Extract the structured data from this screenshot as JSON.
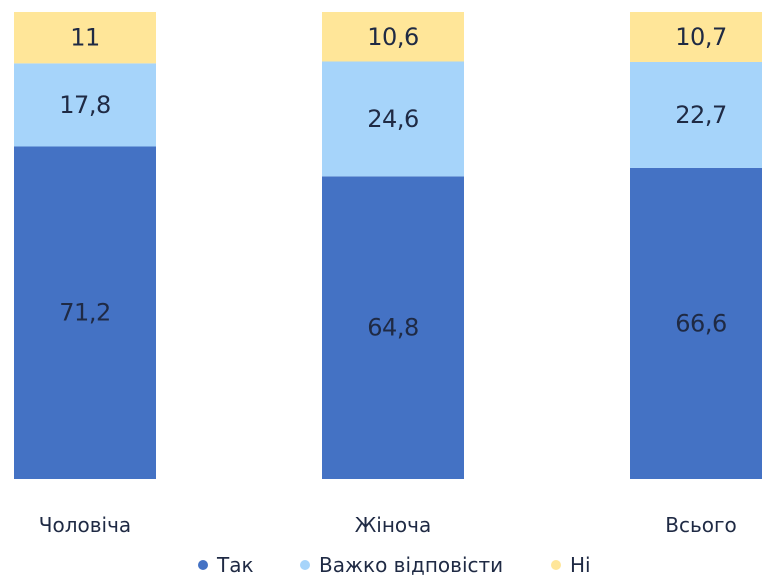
{
  "chart_data": {
    "type": "bar",
    "stacked": true,
    "categories": [
      "Чоловіча",
      "Жіноча",
      "Всього"
    ],
    "series": [
      {
        "name": "Так",
        "values": [
          71.2,
          64.8,
          66.6
        ],
        "labels": [
          "71,2",
          "64,8",
          "66,6"
        ],
        "color": "#4472c4"
      },
      {
        "name": "Важко відповісти",
        "values": [
          17.8,
          24.6,
          22.7
        ],
        "labels": [
          "17,8",
          "24,6",
          "22,7"
        ],
        "color": "#a6d4fa"
      },
      {
        "name": "Ні",
        "values": [
          11,
          10.6,
          10.7
        ],
        "labels": [
          "11",
          "10,6",
          "10,7"
        ],
        "color": "#ffe699"
      }
    ],
    "ylim": [
      0,
      100
    ],
    "grid": false,
    "legend": "bottom",
    "title": "",
    "xlabel": "",
    "ylabel": ""
  }
}
